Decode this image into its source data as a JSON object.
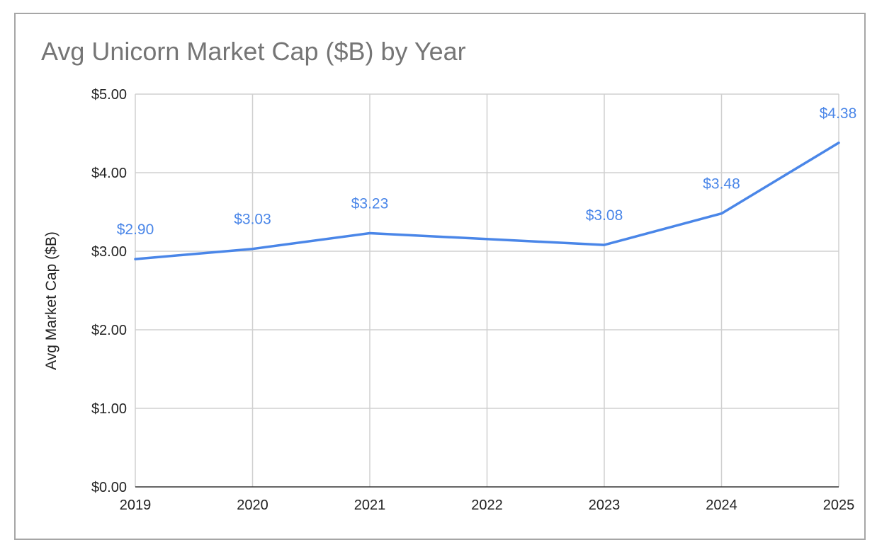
{
  "chart_data": {
    "type": "line",
    "title": "Avg Unicorn Market Cap ($B) by Year",
    "xlabel": "",
    "ylabel": "Avg Market Cap ($B)",
    "categories": [
      "2019",
      "2020",
      "2021",
      "2022",
      "2023",
      "2024",
      "2025"
    ],
    "series": [
      {
        "values": [
          2.9,
          3.03,
          3.23,
          null,
          3.08,
          3.48,
          4.38
        ],
        "data_labels": [
          "$2.90",
          "$3.03",
          "$3.23",
          "",
          "$3.08",
          "$3.48",
          "$4.38"
        ],
        "color": "#4a86e8"
      }
    ],
    "ylim": [
      0,
      5
    ],
    "yticks": [
      "$0.00",
      "$1.00",
      "$2.00",
      "$3.00",
      "$4.00",
      "$5.00"
    ],
    "grid": true,
    "legend": "none",
    "colors": {
      "line": "#4a86e8",
      "data_label": "#4a86e8",
      "grid": "#d0d0d0",
      "axis": "#333333",
      "title": "#757575",
      "border": "#a6a6a6"
    }
  }
}
